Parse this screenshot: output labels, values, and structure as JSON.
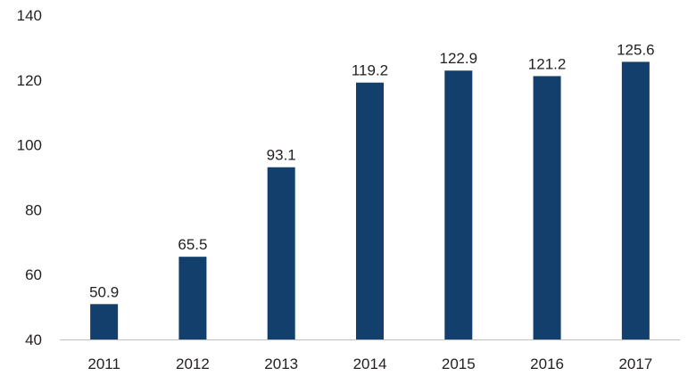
{
  "chart_data": {
    "type": "bar",
    "title": "",
    "xlabel": "",
    "ylabel": "",
    "categories": [
      "2011",
      "2012",
      "2013",
      "2014",
      "2015",
      "2016",
      "2017"
    ],
    "values": [
      50.9,
      65.5,
      93.1,
      119.2,
      122.9,
      121.2,
      125.6
    ],
    "value_labels": [
      "50.9",
      "65.5",
      "93.1",
      "119.2",
      "122.9",
      "121.2",
      "125.6"
    ],
    "ylim": [
      40,
      140
    ],
    "y_ticks": [
      40,
      60,
      80,
      100,
      120,
      140
    ],
    "y_tick_labels": [
      "40",
      "60",
      "80",
      "100",
      "120",
      "140"
    ],
    "grid": false,
    "legend": "none",
    "colors": {
      "bar": "#123f6b",
      "axis": "#bfbfbf",
      "text": "#231f20"
    }
  }
}
